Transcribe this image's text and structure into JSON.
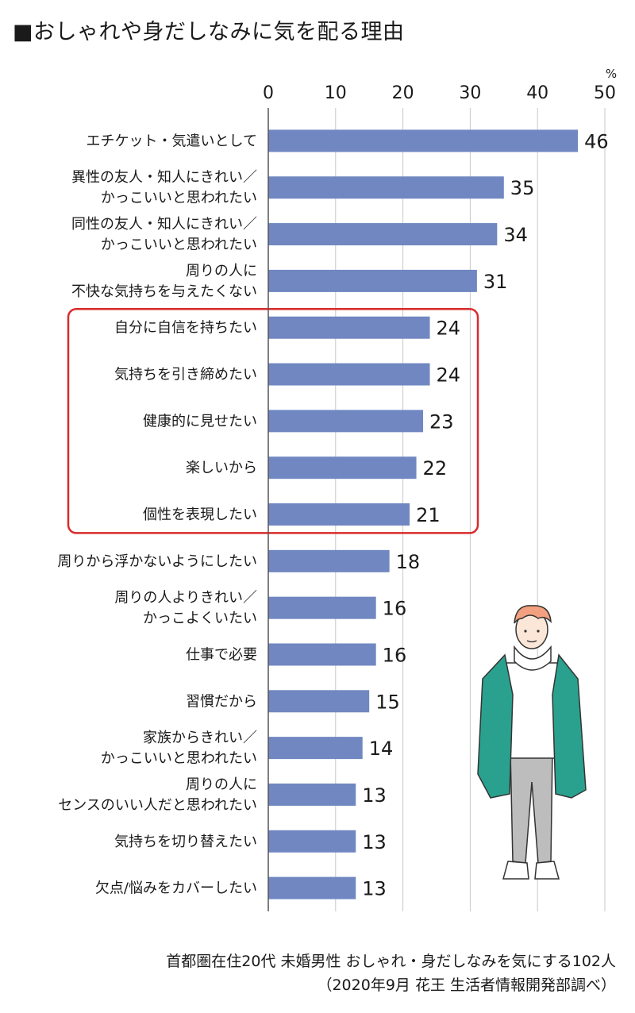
{
  "title": "■おしゃれや身だしなみに気を配る理由",
  "source": {
    "line1": "首都圏在住20代 未婚男性 おしゃれ・身だしなみを気にする102人",
    "line2": "（2020年9月 花王 生活者情報開発部調べ）"
  },
  "chart_data": {
    "type": "bar",
    "orientation": "horizontal",
    "unit": "%",
    "xlim": [
      0,
      50
    ],
    "ticks": [
      0,
      10,
      20,
      30,
      40,
      50
    ],
    "grid": true,
    "categories": [
      [
        "エチケット・気遣いとして"
      ],
      [
        "異性の友人・知人にきれい／",
        "かっこいいと思われたい"
      ],
      [
        "同性の友人・知人にきれい／",
        "かっこいいと思われたい"
      ],
      [
        "周りの人に",
        "不快な気持ちを与えたくない"
      ],
      [
        "自分に自信を持ちたい"
      ],
      [
        "気持ちを引き締めたい"
      ],
      [
        "健康的に見せたい"
      ],
      [
        "楽しいから"
      ],
      [
        "個性を表現したい"
      ],
      [
        "周りから浮かないようにしたい"
      ],
      [
        "周りの人よりきれい／",
        "かっこよくいたい"
      ],
      [
        "仕事で必要"
      ],
      [
        "習慣だから"
      ],
      [
        "家族からきれい／",
        "かっこいいと思われたい"
      ],
      [
        "周りの人に",
        "センスのいい人だと思われたい"
      ],
      [
        "気持ちを切り替えたい"
      ],
      [
        "欠点/悩みをカバーしたい"
      ]
    ],
    "values": [
      46,
      35,
      34,
      31,
      24,
      24,
      23,
      22,
      21,
      18,
      16,
      16,
      15,
      14,
      13,
      13,
      13
    ],
    "highlight_range": [
      4,
      8
    ],
    "colors": {
      "bar": "#7087c1",
      "highlight_border": "#d92b2b",
      "grid": "#c8c8c8",
      "axis": "#555555"
    }
  },
  "illustration": {
    "icon": "young-man-in-green-coat-icon",
    "colors": {
      "hair": "#f2a080",
      "coat": "#2aa18e",
      "pants": "#bdbdbd",
      "skin": "#fbe6d8"
    }
  }
}
